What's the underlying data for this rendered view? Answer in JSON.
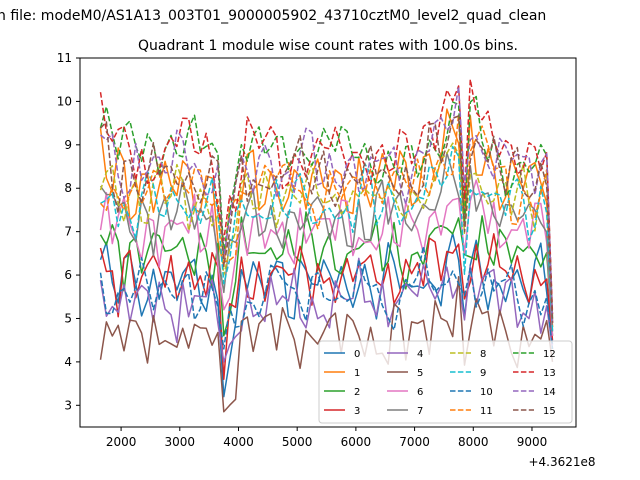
{
  "chart_data": {
    "type": "line",
    "suptitle": "n file: modeM0/AS1A13_003T01_9000005902_43710cztM0_level2_quad_clean",
    "title": "Quadrant 1 module wise count rates with 100.0s bins.",
    "xlabel": "",
    "ylabel": "",
    "x_offset_label": "+4.3621e8",
    "xlim": [
      1300,
      9750
    ],
    "ylim": [
      2.5,
      11
    ],
    "x_ticks": [
      2000,
      3000,
      4000,
      5000,
      6000,
      7000,
      8000,
      9000
    ],
    "x_tick_labels": [
      "2000",
      "3000",
      "4000",
      "5000",
      "6000",
      "7000",
      "8000",
      "9000"
    ],
    "y_ticks": [
      3,
      4,
      5,
      6,
      7,
      8,
      9,
      10,
      11
    ],
    "y_tick_labels": [
      "3",
      "4",
      "5",
      "6",
      "7",
      "8",
      "9",
      "10",
      "11"
    ],
    "x": {
      "start": 1650,
      "step": 100,
      "count": 78
    },
    "grid": false,
    "legend": {
      "placement": "lower-right",
      "columns": 4
    },
    "series": [
      {
        "name": "0",
        "color": "#1f77b4",
        "dash": "solid",
        "base": 5.8,
        "dip": 3.2,
        "bump": 0.4,
        "last": 4.4
      },
      {
        "name": "1",
        "color": "#ff7f0e",
        "dash": "solid",
        "base": 8.1,
        "dip": 6.2,
        "bump": 1.2,
        "last": 4.8
      },
      {
        "name": "2",
        "color": "#2ca02c",
        "dash": "solid",
        "base": 6.5,
        "dip": 4.6,
        "bump": 0.7,
        "last": 4.6
      },
      {
        "name": "3",
        "color": "#d62728",
        "dash": "solid",
        "base": 6.0,
        "dip": 3.6,
        "bump": 0.5,
        "last": 4.5
      },
      {
        "name": "4",
        "color": "#9467bd",
        "dash": "solid",
        "base": 5.4,
        "dip": 4.0,
        "bump": 0.6,
        "last": 4.3
      },
      {
        "name": "5",
        "color": "#8c564b",
        "dash": "solid",
        "base": 4.6,
        "dip": 2.85,
        "bump": 0.7,
        "last": 4.0
      },
      {
        "name": "6",
        "color": "#e377c2",
        "dash": "solid",
        "base": 7.0,
        "dip": 5.2,
        "bump": 0.8,
        "last": 4.6
      },
      {
        "name": "7",
        "color": "#7f7f7f",
        "dash": "solid",
        "base": 7.3,
        "dip": 5.6,
        "bump": 1.0,
        "last": 4.7
      },
      {
        "name": "8",
        "color": "#bcbd22",
        "dash": "dashed",
        "base": 7.8,
        "dip": 6.0,
        "bump": 0.9,
        "last": 4.8
      },
      {
        "name": "9",
        "color": "#17becf",
        "dash": "dashed",
        "base": 7.6,
        "dip": 5.8,
        "bump": 0.9,
        "last": 4.7
      },
      {
        "name": "10",
        "color": "#1f77b4",
        "dash": "dashed",
        "base": 5.6,
        "dip": 4.3,
        "bump": 0.5,
        "last": 4.3
      },
      {
        "name": "11",
        "color": "#ff7f0e",
        "dash": "dashed",
        "base": 8.0,
        "dip": 6.3,
        "bump": 1.3,
        "last": 4.9
      },
      {
        "name": "12",
        "color": "#2ca02c",
        "dash": "dashed",
        "base": 8.7,
        "dip": 6.5,
        "bump": 1.4,
        "last": 5.0
      },
      {
        "name": "13",
        "color": "#d62728",
        "dash": "dashed",
        "base": 8.8,
        "dip": 6.8,
        "bump": 1.6,
        "last": 5.1
      },
      {
        "name": "14",
        "color": "#9467bd",
        "dash": "dashed",
        "base": 8.5,
        "dip": 6.4,
        "bump": 1.3,
        "last": 4.9
      },
      {
        "name": "15",
        "color": "#8c564b",
        "dash": "dashed",
        "base": 8.3,
        "dip": 6.2,
        "bump": 1.2,
        "last": 4.9
      }
    ]
  }
}
